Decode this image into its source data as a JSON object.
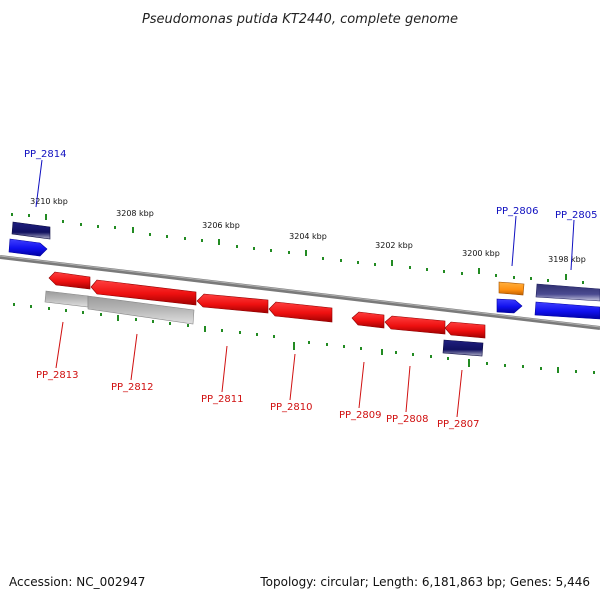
{
  "title": "Pseudomonas putida KT2440, complete genome",
  "footer": {
    "accession": "Accession: NC_002947",
    "summary": "Topology: circular; Length: 6,181,863 bp; Genes: 5,446"
  },
  "colors": {
    "backbone": "#808080",
    "tick": "#228B22",
    "forward_gene": "#1010ee",
    "reverse_gene": "#ee1010",
    "dark_feature": "#101060",
    "gray_feature": "#b4b4b4",
    "orange_feature": "#ff9010",
    "label_blue": "#1010c0",
    "label_red": "#d01010"
  },
  "ticks": {
    "labels": [
      "3210 kbp",
      "3208 kbp",
      "3206 kbp",
      "3204 kbp",
      "3202 kbp",
      "3200 kbp",
      "3198 kbp"
    ]
  },
  "genes": {
    "forward": [
      "PP_2814",
      "PP_2806",
      "PP_2805"
    ],
    "reverse": [
      "PP_2813",
      "PP_2812",
      "PP_2811",
      "PP_2810",
      "PP_2809",
      "PP_2808",
      "PP_2807"
    ]
  }
}
